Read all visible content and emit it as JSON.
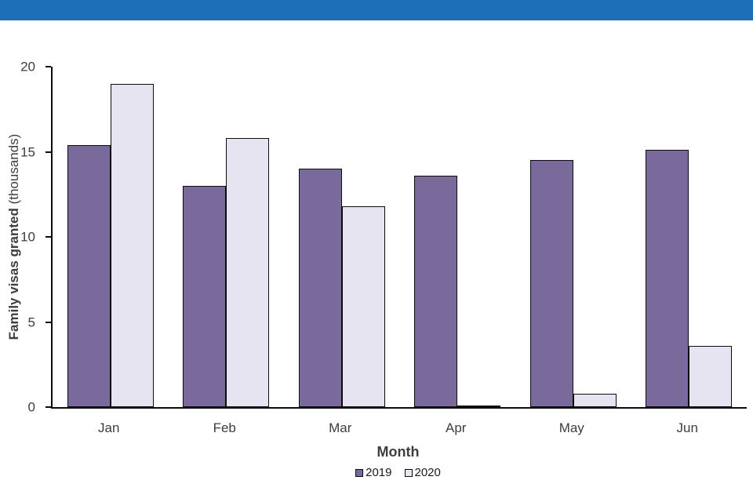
{
  "banner": {
    "color": "#1d70b8"
  },
  "chart_data": {
    "type": "bar",
    "categories": [
      "Jan",
      "Feb",
      "Mar",
      "Apr",
      "May",
      "Jun"
    ],
    "series": [
      {
        "name": "2019",
        "color": "#796a9b",
        "values": [
          15.4,
          13.0,
          14.0,
          13.6,
          14.5,
          15.1
        ]
      },
      {
        "name": "2020",
        "color": "#e6e4f0",
        "values": [
          19.0,
          15.8,
          11.8,
          0.1,
          0.8,
          3.6
        ]
      }
    ],
    "title": "",
    "xlabel": "Month",
    "ylabel_bold": "Family visas granted",
    "ylabel_normal": " (thousands)",
    "ylim": [
      0,
      20
    ],
    "yticks": [
      0,
      5,
      10,
      15,
      20
    ],
    "grid": false,
    "legend_position": "bottom",
    "bar_outline_color": "#0b0c0c",
    "axis_color": "#0b0c0c",
    "label_color": "#3d3d3d"
  }
}
